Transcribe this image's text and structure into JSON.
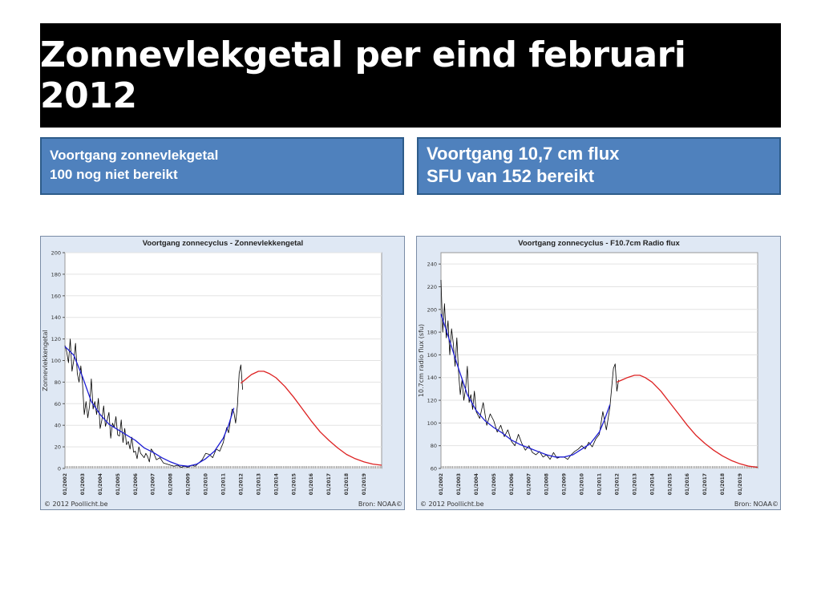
{
  "page": {
    "title": "Zonnevlekgetal per eind februari 2012",
    "left_callout": [
      "Voortgang zonnevlekgetal",
      "100 nog niet bereikt"
    ],
    "right_callout": [
      "Voortgang 10,7 cm flux",
      "SFU van 152 bereikt"
    ]
  },
  "chart_data": [
    {
      "type": "line",
      "title": "Voortgang zonnecyclus - Zonnevlekkengetal",
      "ylabel": "Zonnevlekkengetal",
      "xlabel": "",
      "ylim": [
        0,
        200
      ],
      "yticks": [
        0,
        20,
        40,
        60,
        80,
        100,
        120,
        140,
        160,
        180,
        200
      ],
      "x_range": [
        2002.0,
        2020.0
      ],
      "xtick_labels": [
        "01/2002",
        "01/2003",
        "01/2004",
        "01/2005",
        "01/2006",
        "01/2007",
        "01/2008",
        "01/2009",
        "01/2010",
        "01/2011",
        "01/2012",
        "01/2013",
        "01/2014",
        "01/2015",
        "01/2016",
        "01/2017",
        "01/2018",
        "01/2019"
      ],
      "grid": true,
      "footer_left": "© 2012 Poollicht.be",
      "footer_right": "Bron:  NOAA©",
      "series": [
        {
          "color": "#000000",
          "x": [
            2002.0,
            2002.1,
            2002.2,
            2002.3,
            2002.4,
            2002.5,
            2002.6,
            2002.7,
            2002.8,
            2002.9,
            2003.0,
            2003.1,
            2003.2,
            2003.3,
            2003.4,
            2003.5,
            2003.6,
            2003.7,
            2003.8,
            2003.9,
            2004.0,
            2004.1,
            2004.2,
            2004.3,
            2004.4,
            2004.5,
            2004.6,
            2004.7,
            2004.8,
            2004.9,
            2005.0,
            2005.1,
            2005.2,
            2005.3,
            2005.4,
            2005.5,
            2005.6,
            2005.7,
            2005.8,
            2005.9,
            2006.0,
            2006.1,
            2006.2,
            2006.3,
            2006.4,
            2006.5,
            2006.6,
            2006.7,
            2006.8,
            2006.9,
            2007.0,
            2007.2,
            2007.4,
            2007.6,
            2007.8,
            2008.0,
            2008.2,
            2008.4,
            2008.6,
            2008.8,
            2009.0,
            2009.2,
            2009.4,
            2009.6,
            2009.8,
            2010.0,
            2010.2,
            2010.4,
            2010.6,
            2010.8,
            2011.0,
            2011.1,
            2011.2,
            2011.3,
            2011.4,
            2011.5,
            2011.6,
            2011.7,
            2011.8,
            2011.9,
            2012.0,
            2012.1
          ],
          "values": [
            114,
            108,
            98,
            120,
            90,
            100,
            116,
            88,
            80,
            95,
            79,
            50,
            62,
            47,
            58,
            83,
            55,
            62,
            50,
            65,
            37,
            45,
            58,
            39,
            45,
            52,
            28,
            42,
            38,
            48,
            31,
            30,
            45,
            24,
            37,
            22,
            25,
            18,
            29,
            15,
            16,
            9,
            20,
            14,
            12,
            10,
            14,
            11,
            6,
            18,
            16,
            8,
            10,
            5,
            4,
            3,
            2,
            3,
            1,
            2,
            1,
            3,
            2,
            5,
            8,
            14,
            13,
            10,
            18,
            16,
            24,
            32,
            38,
            33,
            44,
            55,
            52,
            42,
            58,
            88,
            96,
            73
          ]
        },
        {
          "color": "#1c1cd4",
          "x": [
            2002.0,
            2002.5,
            2003.0,
            2003.5,
            2004.0,
            2004.5,
            2005.0,
            2005.5,
            2006.0,
            2006.5,
            2007.0,
            2007.5,
            2008.0,
            2008.5,
            2009.0,
            2009.5,
            2010.0,
            2010.5,
            2011.0,
            2011.3,
            2011.6
          ],
          "values": [
            113,
            105,
            85,
            62,
            50,
            41,
            36,
            31,
            26,
            19,
            15,
            10,
            6,
            3,
            2,
            4,
            9,
            16,
            28,
            40,
            56
          ]
        },
        {
          "color": "#dd2222",
          "x": [
            2012.0,
            2012.3,
            2012.6,
            2013.0,
            2013.3,
            2013.6,
            2014.0,
            2014.5,
            2015.0,
            2015.5,
            2016.0,
            2016.5,
            2017.0,
            2017.5,
            2018.0,
            2018.5,
            2019.0,
            2019.5,
            2020.0
          ],
          "values": [
            79,
            83,
            87,
            90,
            90,
            88,
            84,
            76,
            66,
            55,
            44,
            34,
            26,
            19,
            13,
            9,
            6,
            4,
            3
          ]
        }
      ]
    },
    {
      "type": "line",
      "title": "Voortgang zonnecyclus - F10.7cm Radio flux",
      "ylabel": "10.7cm radio flux (sfu)",
      "xlabel": "",
      "ylim": [
        60,
        250
      ],
      "yticks": [
        60,
        80,
        100,
        120,
        140,
        160,
        180,
        200,
        220,
        240
      ],
      "x_range": [
        2002.0,
        2020.0
      ],
      "xtick_labels": [
        "01/2002",
        "01/2003",
        "01/2004",
        "01/2005",
        "01/2006",
        "01/2007",
        "01/2008",
        "01/2009",
        "01/2010",
        "01/2011",
        "01/2012",
        "01/2013",
        "01/2014",
        "01/2015",
        "01/2016",
        "01/2017",
        "01/2018",
        "01/2019"
      ],
      "grid": true,
      "footer_left": "© 2012 Poollicht.be",
      "footer_right": "Bron:  NOAA©",
      "series": [
        {
          "color": "#000000",
          "x": [
            2002.0,
            2002.1,
            2002.2,
            2002.3,
            2002.4,
            2002.5,
            2002.6,
            2002.7,
            2002.8,
            2002.9,
            2003.0,
            2003.1,
            2003.2,
            2003.3,
            2003.4,
            2003.5,
            2003.6,
            2003.7,
            2003.8,
            2003.9,
            2004.0,
            2004.2,
            2004.4,
            2004.6,
            2004.8,
            2005.0,
            2005.2,
            2005.4,
            2005.6,
            2005.8,
            2006.0,
            2006.2,
            2006.4,
            2006.6,
            2006.8,
            2007.0,
            2007.2,
            2007.4,
            2007.6,
            2007.8,
            2008.0,
            2008.2,
            2008.4,
            2008.6,
            2008.8,
            2009.0,
            2009.2,
            2009.4,
            2009.6,
            2009.8,
            2010.0,
            2010.2,
            2010.4,
            2010.6,
            2010.8,
            2011.0,
            2011.2,
            2011.4,
            2011.6,
            2011.8,
            2011.9,
            2012.0,
            2012.1
          ],
          "values": [
            226,
            180,
            205,
            175,
            190,
            160,
            183,
            170,
            150,
            175,
            145,
            125,
            138,
            120,
            130,
            150,
            118,
            125,
            112,
            128,
            110,
            104,
            118,
            98,
            108,
            102,
            92,
            98,
            88,
            94,
            84,
            80,
            90,
            82,
            76,
            80,
            74,
            72,
            75,
            70,
            72,
            68,
            74,
            69,
            70,
            70,
            68,
            72,
            75,
            77,
            80,
            77,
            83,
            79,
            86,
            90,
            110,
            94,
            114,
            148,
            152,
            128,
            138
          ]
        },
        {
          "color": "#1c1cd4",
          "x": [
            2002.0,
            2002.5,
            2003.0,
            2003.5,
            2004.0,
            2004.5,
            2005.0,
            2005.5,
            2006.0,
            2006.5,
            2007.0,
            2007.5,
            2008.0,
            2008.5,
            2009.0,
            2009.5,
            2010.0,
            2010.5,
            2011.0,
            2011.3,
            2011.6
          ],
          "values": [
            196,
            172,
            148,
            125,
            111,
            102,
            96,
            91,
            85,
            81,
            78,
            75,
            72,
            70,
            70,
            72,
            77,
            82,
            92,
            103,
            116
          ]
        },
        {
          "color": "#dd2222",
          "x": [
            2012.0,
            2012.3,
            2012.6,
            2013.0,
            2013.3,
            2013.6,
            2014.0,
            2014.5,
            2015.0,
            2015.5,
            2016.0,
            2016.5,
            2017.0,
            2017.5,
            2018.0,
            2018.5,
            2019.0,
            2019.5,
            2020.0
          ],
          "values": [
            136,
            138,
            140,
            142,
            142,
            140,
            136,
            128,
            118,
            108,
            98,
            89,
            82,
            76,
            71,
            67,
            64,
            62,
            61
          ]
        }
      ]
    }
  ]
}
